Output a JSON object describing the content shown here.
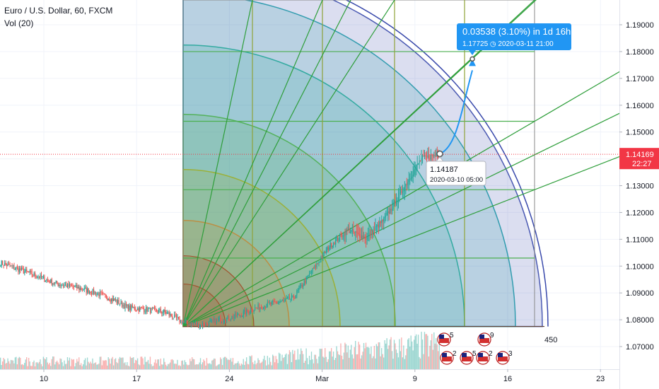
{
  "header": {
    "title": "Euro / U.S. Dollar, 60, FXCM",
    "volume_indicator": "Vol (20)"
  },
  "colors": {
    "up": "#26a69a",
    "down": "#ef5350",
    "current_price_line": "#f23645",
    "measure_accent": "#2196f3",
    "gann_rings": [
      "#a0522d",
      "#c08a3a",
      "#9cae2a",
      "#4caf50",
      "#26a69a",
      "#2196a8",
      "#3949ab"
    ]
  },
  "chart_data": {
    "type": "candlestick",
    "symbol": "EURUSD",
    "timeframe": "60",
    "ylim": [
      1.0625,
      1.1975
    ],
    "y_ticks": [
      "1.07000",
      "1.08000",
      "1.09000",
      "1.10000",
      "1.11000",
      "1.12000",
      "1.13000",
      "1.14000",
      "1.15000",
      "1.16000",
      "1.17000",
      "1.18000",
      "1.19000"
    ],
    "x_ticks": [
      "10",
      "17",
      "24",
      "Mar",
      "9",
      "16",
      "23"
    ],
    "current_price": {
      "value": "1.14169",
      "countdown": "22:27"
    },
    "price_anchors": [
      {
        "x": 0,
        "close": 1.1012
      },
      {
        "x": 1,
        "close": 1.0988
      },
      {
        "x": 2,
        "close": 1.0963
      },
      {
        "x": 3,
        "close": 1.0935
      },
      {
        "x": 4,
        "close": 1.0922
      },
      {
        "x": 5,
        "close": 1.0905
      },
      {
        "x": 6,
        "close": 1.088
      },
      {
        "x": 7,
        "close": 1.0845
      },
      {
        "x": 8,
        "close": 1.0838
      },
      {
        "x": 9,
        "close": 1.0828
      },
      {
        "x": 10,
        "close": 1.079
      },
      {
        "x": 11,
        "close": 1.078
      },
      {
        "x": 12,
        "close": 1.08
      },
      {
        "x": 13,
        "close": 1.0815
      },
      {
        "x": 14,
        "close": 1.0845
      },
      {
        "x": 15,
        "close": 1.0862
      },
      {
        "x": 16,
        "close": 1.088
      },
      {
        "x": 17,
        "close": 1.0978
      },
      {
        "x": 18,
        "close": 1.1075
      },
      {
        "x": 19,
        "close": 1.1135
      },
      {
        "x": 20,
        "close": 1.1105
      },
      {
        "x": 21,
        "close": 1.1175
      },
      {
        "x": 22,
        "close": 1.1285
      },
      {
        "x": 23,
        "close": 1.14
      },
      {
        "x": 24,
        "close": 1.1417
      }
    ],
    "volume_labels": [
      "450"
    ],
    "gann_fan": {
      "origin": {
        "date": "2020-02-20",
        "price": 1.0775
      },
      "price_levels": [
        1.0775,
        1.103,
        1.1285,
        1.154,
        1.18
      ]
    },
    "measure": {
      "label": "0.03538 (3.10%) in 1d 16h",
      "sublabel": "1.17725",
      "sublabel_date": "2020-03-11  21:00",
      "start_price": "1.14187",
      "start_date": "2020-03-10 05:00",
      "target_price": 1.17725
    },
    "events": [
      {
        "label": "5"
      },
      {
        "label": "9"
      },
      {
        "label": "2"
      },
      {
        "label": "5"
      },
      {
        "label": "2"
      },
      {
        "label": "3"
      }
    ]
  }
}
